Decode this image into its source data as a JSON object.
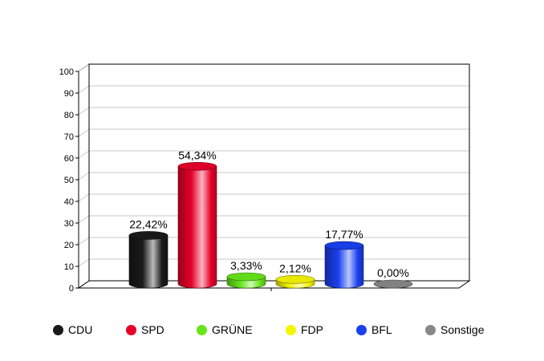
{
  "chart_data": {
    "type": "bar",
    "categories": [
      "CDU",
      "SPD",
      "GRÜNE",
      "FDP",
      "BFL",
      "Sonstige"
    ],
    "values": [
      22.42,
      54.34,
      3.33,
      2.12,
      17.77,
      0.0
    ],
    "value_labels": [
      "22,42%",
      "54,34%",
      "3,33%",
      "2,12%",
      "17,77%",
      "0,00%"
    ],
    "colors": [
      "#1a1a1a",
      "#e8002a",
      "#66e61a",
      "#f5f500",
      "#1a40f0",
      "#888888"
    ],
    "ylim": [
      0,
      100
    ],
    "y_ticks": [
      "0",
      "10",
      "20",
      "30",
      "40",
      "50",
      "60",
      "70",
      "80",
      "90",
      "100"
    ],
    "grid": true,
    "legend_placement": "bottom"
  }
}
